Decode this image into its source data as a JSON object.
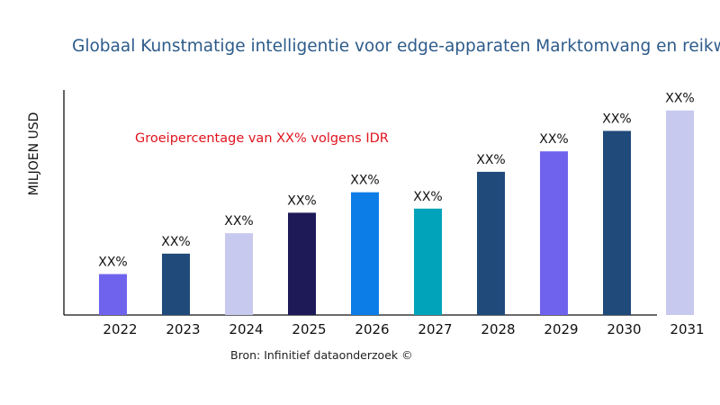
{
  "chart_data": {
    "type": "bar",
    "title": "Globaal Kunstmatige intelligentie voor edge-apparaten Marktomvang en reikw",
    "ylabel": "MILJOEN USD",
    "xlabel": "",
    "categories": [
      "2022",
      "2023",
      "2024",
      "2025",
      "2026",
      "2027",
      "2028",
      "2029",
      "2030",
      "2031"
    ],
    "values": [
      20,
      30,
      40,
      50,
      60,
      52,
      70,
      80,
      90,
      100
    ],
    "data_labels": [
      "XX%",
      "XX%",
      "XX%",
      "XX%",
      "XX%",
      "XX%",
      "XX%",
      "XX%",
      "XX%",
      "XX%"
    ],
    "colors": [
      "#6f63ee",
      "#1f4a7a",
      "#c8c9ef",
      "#1e1a58",
      "#0c7de6",
      "#00a3b9",
      "#1f4a7a",
      "#6f63ee",
      "#1f4a7a",
      "#c8c9ef"
    ],
    "ylim": [
      0,
      110
    ],
    "grid": false,
    "annotation": "Groeipercentage van XX% volgens IDR",
    "source": "Bron: Infinitief dataonderzoek ©"
  }
}
